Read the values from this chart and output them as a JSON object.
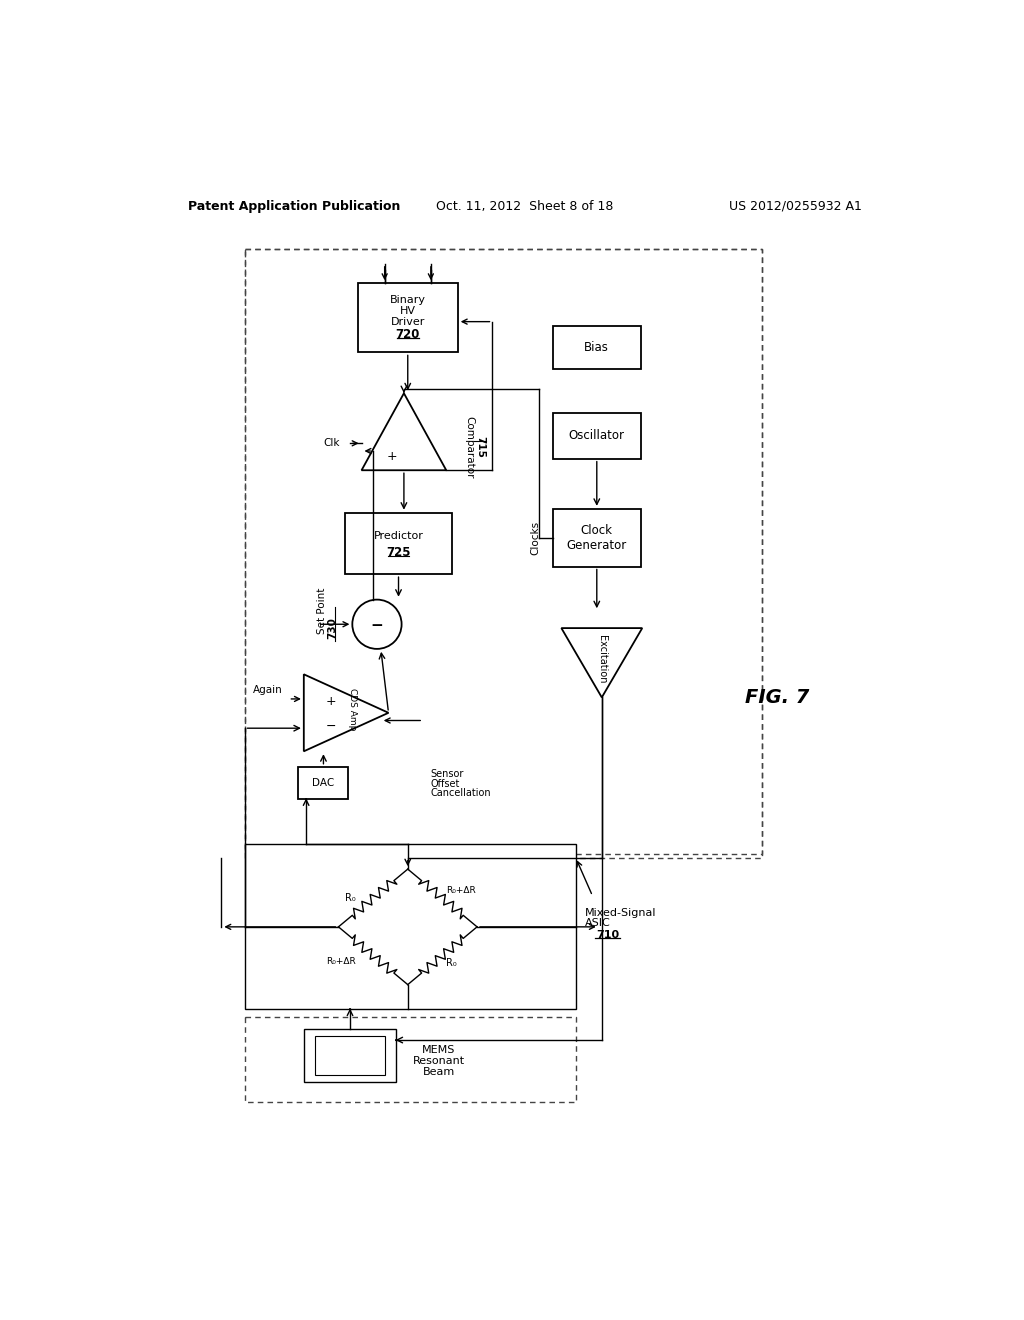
{
  "title_left": "Patent Application Publication",
  "title_mid": "Oct. 11, 2012  Sheet 8 of 18",
  "title_right": "US 2012/0255932 A1",
  "fig_label": "FIG. 7",
  "bg_color": "#ffffff"
}
